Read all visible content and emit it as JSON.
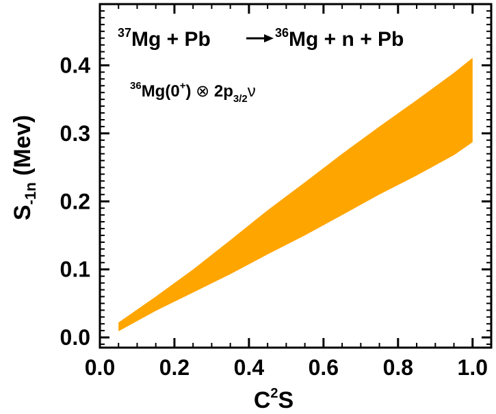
{
  "chart_data": {
    "type": "area",
    "title": "",
    "xlabel": {
      "main": "C",
      "sup": "2",
      "rest": "S"
    },
    "ylabel": {
      "main": "S",
      "sub": "-1n",
      "rest": " (Mev)"
    },
    "xlim": [
      0.0,
      1.05
    ],
    "ylim": [
      -0.015,
      0.49
    ],
    "x_ticks": [
      "0.0",
      "0.2",
      "0.4",
      "0.6",
      "0.8",
      "1.0"
    ],
    "y_ticks": [
      "0.0",
      "0.1",
      "0.2",
      "0.3",
      "0.4"
    ],
    "fill_color": "#FFA500",
    "band": {
      "x": [
        0.05,
        0.15,
        0.25,
        0.35,
        0.45,
        0.55,
        0.65,
        0.75,
        0.85,
        0.95,
        1.0
      ],
      "upper": [
        0.022,
        0.06,
        0.1,
        0.143,
        0.187,
        0.228,
        0.27,
        0.31,
        0.349,
        0.389,
        0.411
      ],
      "lower": [
        0.009,
        0.039,
        0.066,
        0.093,
        0.122,
        0.15,
        0.18,
        0.21,
        0.238,
        0.268,
        0.287
      ]
    },
    "annotations": {
      "reaction": {
        "sup1": "37",
        "a": "Mg + Pb ",
        "sup2": "36",
        "b": "Mg + n + Pb"
      },
      "config": {
        "sup1": "36",
        "a": "Mg(0",
        "sup2": "+",
        "b": ") ",
        "otimes": "⊗",
        "c": " 2p",
        "sub": "3/2",
        "nu": "ν"
      }
    }
  }
}
